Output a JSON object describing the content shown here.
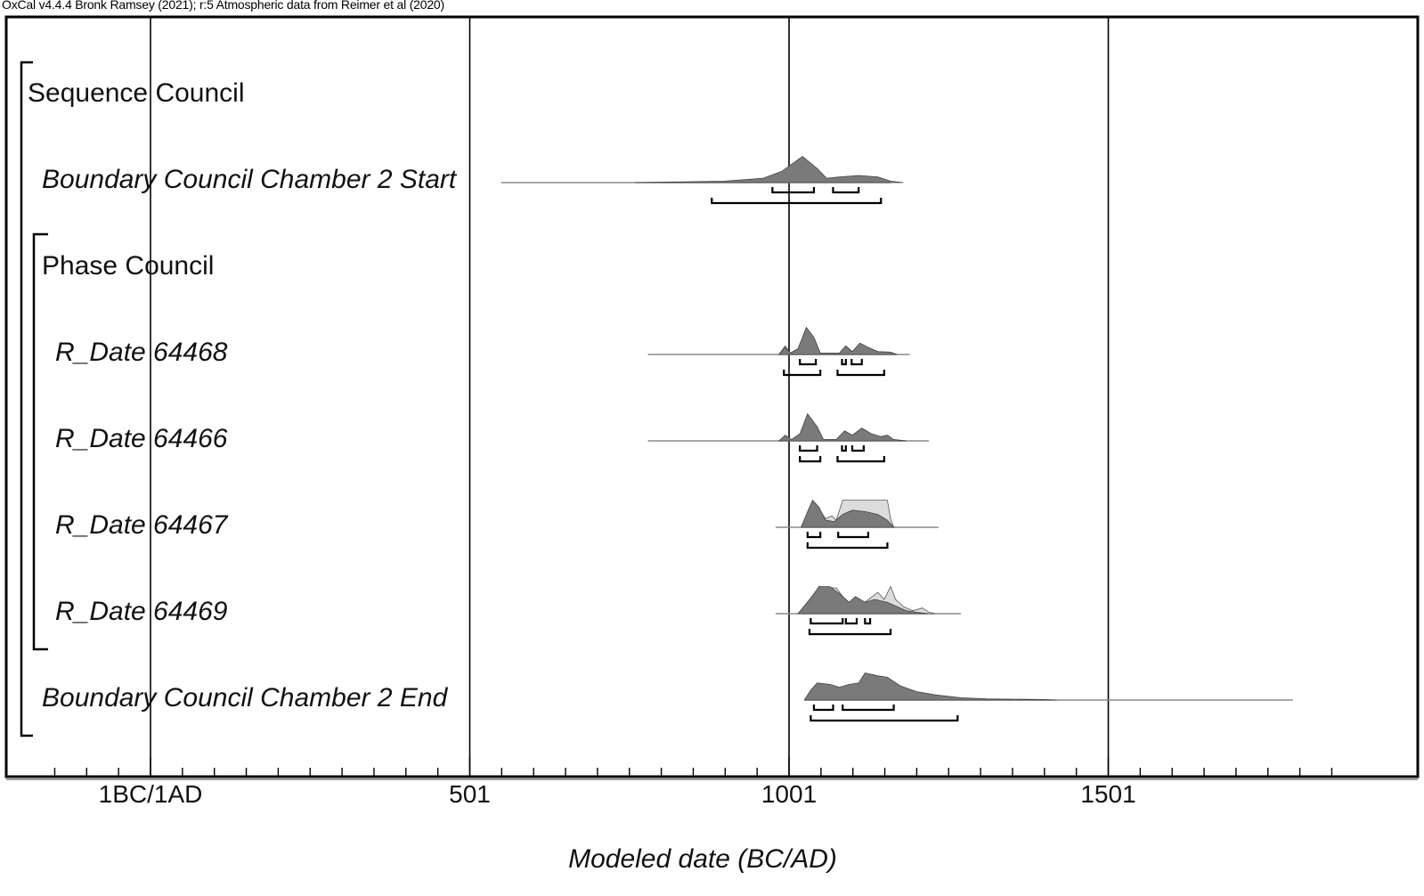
{
  "header": {
    "title": "OxCal v4.4.4 Bronk Ramsey (2021); r:5 Atmospheric data from Reimer et al (2020)"
  },
  "chart_data": {
    "type": "area",
    "title": "OxCal v4.4.4 Bronk Ramsey (2021); r:5 Atmospheric data from Reimer et al (2020)",
    "xlabel": "Modeled date (BC/AD)",
    "ylabel": "",
    "x_ticks": [
      {
        "label": "1BC/1AD",
        "value": 1
      },
      {
        "label": "501",
        "value": 501
      },
      {
        "label": "1001",
        "value": 1001
      },
      {
        "label": "1501",
        "value": 1501
      }
    ],
    "xlim": [
      -150,
      1900
    ],
    "minor_tick_interval": 50,
    "grid": true,
    "groups": [
      {
        "name": "Sequence Council",
        "type": "sequence"
      },
      {
        "name": "Phase Council",
        "type": "phase"
      }
    ],
    "series": [
      {
        "name": "Boundary Council Chamber 2 Start",
        "kind": "boundary",
        "range_line": [
          550,
          1160
        ],
        "posterior": [
          [
            760,
            0
          ],
          [
            900,
            0.05
          ],
          [
            960,
            0.15
          ],
          [
            990,
            0.4
          ],
          [
            1022,
            0.92
          ],
          [
            1045,
            0.5
          ],
          [
            1060,
            0.15
          ],
          [
            1080,
            0.2
          ],
          [
            1110,
            0.25
          ],
          [
            1140,
            0.2
          ],
          [
            1160,
            0.05
          ],
          [
            1180,
            0
          ]
        ],
        "prior": [],
        "hpd_68": [
          [
            975,
            1040
          ],
          [
            1070,
            1110
          ]
        ],
        "hpd_95": [
          [
            880,
            1145
          ]
        ]
      },
      {
        "name": "R_Date 64468",
        "kind": "r_date",
        "range_line": [
          780,
          1190
        ],
        "posterior": [
          [
            985,
            0
          ],
          [
            995,
            0.25
          ],
          [
            1003,
            0.05
          ],
          [
            1015,
            0.2
          ],
          [
            1028,
            0.95
          ],
          [
            1040,
            0.6
          ],
          [
            1050,
            0.05
          ],
          [
            1080,
            0.05
          ],
          [
            1090,
            0.3
          ],
          [
            1100,
            0.1
          ],
          [
            1112,
            0.4
          ],
          [
            1125,
            0.25
          ],
          [
            1140,
            0.1
          ],
          [
            1160,
            0.08
          ],
          [
            1170,
            0
          ]
        ],
        "prior": [
          [
            985,
            0
          ],
          [
            995,
            0.3
          ],
          [
            1003,
            0.05
          ],
          [
            1015,
            0.2
          ],
          [
            1028,
            0.9
          ],
          [
            1040,
            0.5
          ],
          [
            1050,
            0.05
          ],
          [
            1080,
            0.05
          ],
          [
            1090,
            0.3
          ],
          [
            1100,
            0.1
          ],
          [
            1112,
            0.35
          ],
          [
            1125,
            0.2
          ],
          [
            1140,
            0.1
          ],
          [
            1160,
            0.08
          ],
          [
            1170,
            0
          ]
        ],
        "hpd_68": [
          [
            1018,
            1043
          ],
          [
            1084,
            1090
          ],
          [
            1099,
            1115
          ]
        ],
        "hpd_95": [
          [
            993,
            1050
          ],
          [
            1077,
            1150
          ]
        ]
      },
      {
        "name": "R_Date 64466",
        "kind": "r_date",
        "range_line": [
          780,
          1220
        ],
        "posterior": [
          [
            985,
            0
          ],
          [
            995,
            0.2
          ],
          [
            1005,
            0.05
          ],
          [
            1018,
            0.25
          ],
          [
            1030,
            0.95
          ],
          [
            1045,
            0.5
          ],
          [
            1055,
            0.05
          ],
          [
            1075,
            0.05
          ],
          [
            1088,
            0.35
          ],
          [
            1100,
            0.2
          ],
          [
            1115,
            0.45
          ],
          [
            1130,
            0.25
          ],
          [
            1145,
            0.15
          ],
          [
            1155,
            0.2
          ],
          [
            1165,
            0.05
          ],
          [
            1185,
            0
          ]
        ],
        "prior": [],
        "hpd_68": [
          [
            1018,
            1045
          ],
          [
            1084,
            1090
          ],
          [
            1100,
            1118
          ]
        ],
        "hpd_95": [
          [
            1018,
            1050
          ],
          [
            1077,
            1150
          ]
        ]
      },
      {
        "name": "R_Date 64467",
        "kind": "r_date",
        "range_line": [
          980,
          1235
        ],
        "posterior": [
          [
            1020,
            0
          ],
          [
            1030,
            0.55
          ],
          [
            1038,
            0.95
          ],
          [
            1048,
            0.7
          ],
          [
            1058,
            0.25
          ],
          [
            1072,
            0.2
          ],
          [
            1085,
            0.45
          ],
          [
            1100,
            0.6
          ],
          [
            1120,
            0.55
          ],
          [
            1140,
            0.45
          ],
          [
            1155,
            0.25
          ],
          [
            1165,
            0
          ]
        ],
        "prior": [
          [
            1020,
            0
          ],
          [
            1030,
            0.5
          ],
          [
            1038,
            0.9
          ],
          [
            1048,
            0.65
          ],
          [
            1058,
            0.3
          ],
          [
            1068,
            0.4
          ],
          [
            1075,
            0.25
          ],
          [
            1085,
            0.95
          ],
          [
            1110,
            0.95
          ],
          [
            1130,
            0.95
          ],
          [
            1155,
            0.95
          ],
          [
            1160,
            0.3
          ],
          [
            1165,
            0
          ]
        ],
        "hpd_68": [
          [
            1030,
            1050
          ],
          [
            1078,
            1125
          ]
        ],
        "hpd_95": [
          [
            1030,
            1155
          ]
        ]
      },
      {
        "name": "R_Date 64469",
        "kind": "r_date",
        "range_line": [
          980,
          1270
        ],
        "posterior": [
          [
            1015,
            0
          ],
          [
            1035,
            0.55
          ],
          [
            1048,
            0.95
          ],
          [
            1065,
            0.95
          ],
          [
            1080,
            0.7
          ],
          [
            1095,
            0.4
          ],
          [
            1105,
            0.6
          ],
          [
            1120,
            0.4
          ],
          [
            1135,
            0.5
          ],
          [
            1155,
            0.4
          ],
          [
            1170,
            0.25
          ],
          [
            1185,
            0.1
          ],
          [
            1200,
            0.05
          ],
          [
            1220,
            0
          ]
        ],
        "prior": [
          [
            1015,
            0
          ],
          [
            1035,
            0.5
          ],
          [
            1048,
            0.95
          ],
          [
            1075,
            0.9
          ],
          [
            1085,
            0.6
          ],
          [
            1095,
            0.4
          ],
          [
            1105,
            0.55
          ],
          [
            1120,
            0.4
          ],
          [
            1140,
            0.75
          ],
          [
            1150,
            0.5
          ],
          [
            1160,
            0.95
          ],
          [
            1168,
            0.5
          ],
          [
            1180,
            0.25
          ],
          [
            1195,
            0.1
          ],
          [
            1210,
            0.2
          ],
          [
            1220,
            0.05
          ],
          [
            1230,
            0
          ]
        ],
        "hpd_68": [
          [
            1035,
            1085
          ],
          [
            1090,
            1107
          ],
          [
            1120,
            1128
          ]
        ],
        "hpd_95": [
          [
            1033,
            1160
          ]
        ]
      },
      {
        "name": "Boundary Council Chamber 2 End",
        "kind": "boundary",
        "range_line": [
          1025,
          1790
        ],
        "posterior": [
          [
            1025,
            0
          ],
          [
            1035,
            0.35
          ],
          [
            1045,
            0.6
          ],
          [
            1065,
            0.55
          ],
          [
            1080,
            0.45
          ],
          [
            1095,
            0.55
          ],
          [
            1110,
            0.6
          ],
          [
            1120,
            0.95
          ],
          [
            1140,
            0.85
          ],
          [
            1155,
            0.8
          ],
          [
            1175,
            0.5
          ],
          [
            1200,
            0.3
          ],
          [
            1230,
            0.18
          ],
          [
            1270,
            0.08
          ],
          [
            1310,
            0.04
          ],
          [
            1400,
            0.02
          ],
          [
            1420,
            0
          ]
        ],
        "prior": [],
        "hpd_68": [
          [
            1040,
            1070
          ],
          [
            1085,
            1165
          ]
        ],
        "hpd_95": [
          [
            1035,
            1265
          ]
        ]
      }
    ]
  },
  "labels": [
    {
      "text": "Sequence Council",
      "style": "normal"
    },
    {
      "text": "Boundary Council Chamber 2 Start",
      "style": "italic"
    },
    {
      "text": "Phase Council",
      "style": "normal"
    },
    {
      "text": "R_Date 64468",
      "style": "italic"
    },
    {
      "text": "R_Date 64466",
      "style": "italic"
    },
    {
      "text": "R_Date 64467",
      "style": "italic"
    },
    {
      "text": "R_Date 64469",
      "style": "italic"
    },
    {
      "text": "Boundary Council Chamber 2 End",
      "style": "italic"
    }
  ],
  "colors": {
    "posterior": "#7a7a7a",
    "prior": "#dcdcdc",
    "frame": "#000000",
    "range_line": "#8a8a8a"
  }
}
